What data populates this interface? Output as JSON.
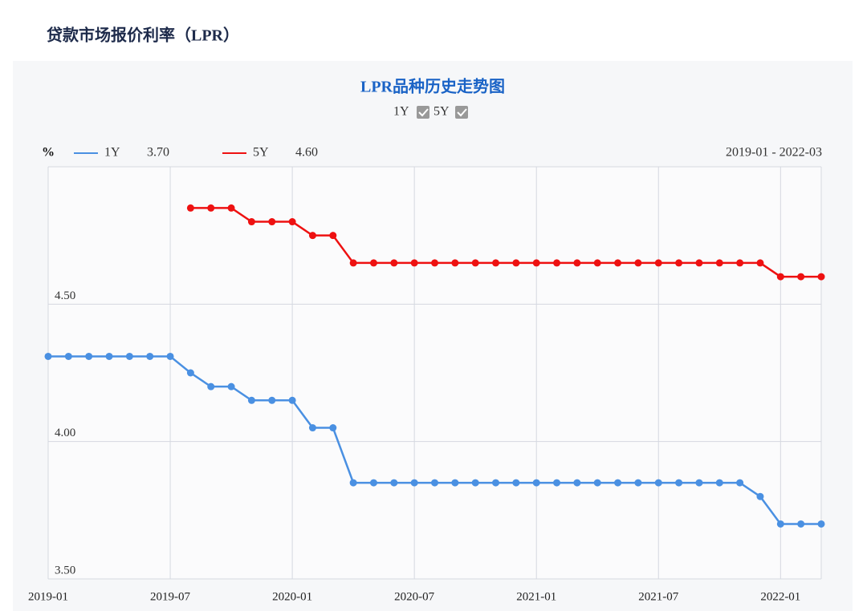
{
  "header": "贷款市场报价利率（LPR）",
  "chart_data": {
    "type": "line",
    "title": "LPR品种历史走势图",
    "y_unit": "%",
    "date_range": "2019-01 - 2022-03",
    "categories": [
      "2019-01",
      null,
      null,
      null,
      null,
      null,
      "2019-07",
      null,
      null,
      null,
      null,
      null,
      "2020-01",
      null,
      null,
      null,
      null,
      null,
      "2020-07",
      null,
      null,
      null,
      null,
      null,
      "2021-01",
      null,
      null,
      null,
      null,
      null,
      "2021-07",
      null,
      null,
      null,
      null,
      null,
      "2022-01",
      null,
      null
    ],
    "series": [
      {
        "name": "1Y",
        "color": "#4a90e2",
        "legend_value": "3.70",
        "values": [
          4.31,
          4.31,
          4.31,
          4.31,
          4.31,
          4.31,
          4.31,
          4.25,
          4.2,
          4.2,
          4.15,
          4.15,
          4.15,
          4.05,
          4.05,
          3.85,
          3.85,
          3.85,
          3.85,
          3.85,
          3.85,
          3.85,
          3.85,
          3.85,
          3.85,
          3.85,
          3.85,
          3.85,
          3.85,
          3.85,
          3.85,
          3.85,
          3.85,
          3.85,
          3.85,
          3.8,
          3.7,
          3.7,
          3.7
        ]
      },
      {
        "name": "5Y",
        "color": "#ee1111",
        "legend_value": "4.60",
        "values": [
          null,
          null,
          null,
          null,
          null,
          null,
          null,
          4.85,
          4.85,
          4.85,
          4.8,
          4.8,
          4.8,
          4.75,
          4.75,
          4.65,
          4.65,
          4.65,
          4.65,
          4.65,
          4.65,
          4.65,
          4.65,
          4.65,
          4.65,
          4.65,
          4.65,
          4.65,
          4.65,
          4.65,
          4.65,
          4.65,
          4.65,
          4.65,
          4.65,
          4.65,
          4.6,
          4.6,
          4.6
        ]
      }
    ],
    "ylim": [
      3.5,
      5.0
    ],
    "yticks": [
      {
        "value": 3.5,
        "label": "3.50"
      },
      {
        "value": 4.0,
        "label": "4.00"
      },
      {
        "value": 4.5,
        "label": "4.50"
      }
    ],
    "grid": true
  }
}
